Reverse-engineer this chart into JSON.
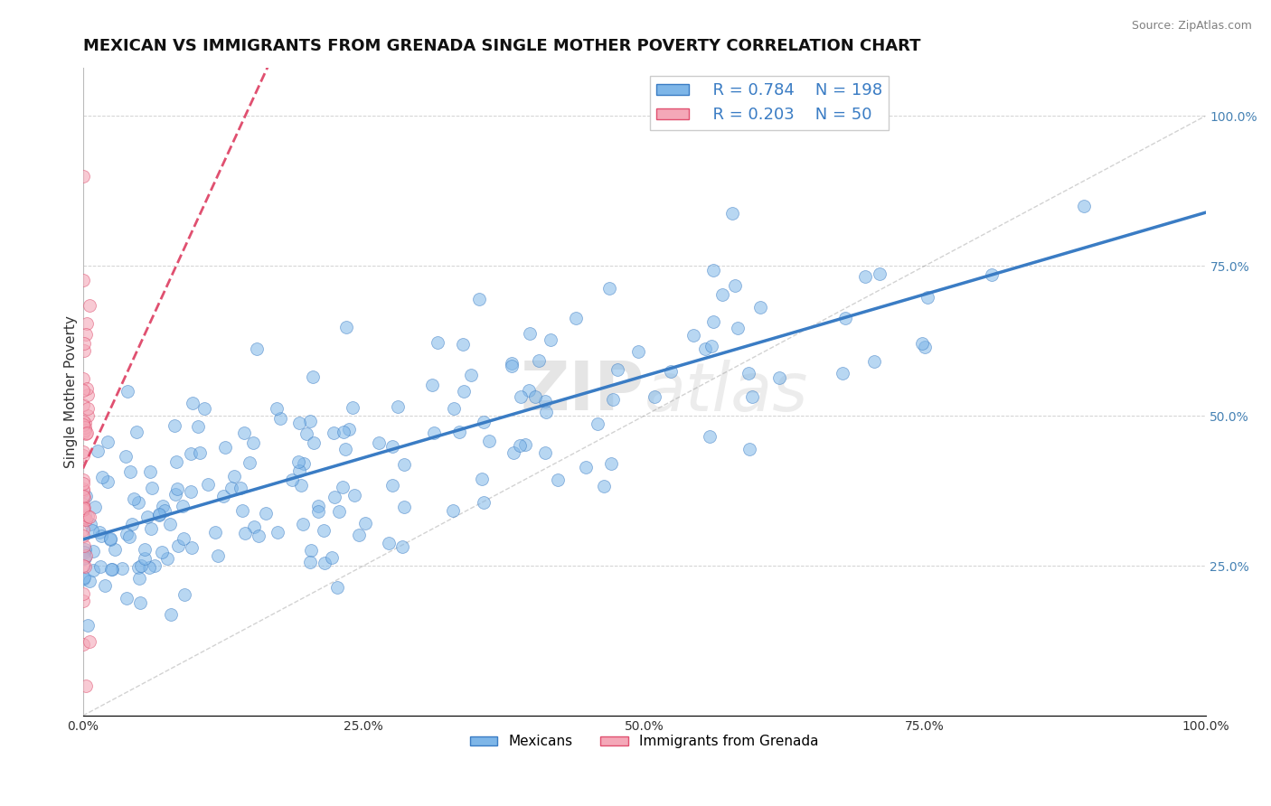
{
  "title": "MEXICAN VS IMMIGRANTS FROM GRENADA SINGLE MOTHER POVERTY CORRELATION CHART",
  "source": "Source: ZipAtlas.com",
  "xlabel": "",
  "ylabel": "Single Mother Poverty",
  "r_mexican": 0.784,
  "n_mexican": 198,
  "r_grenada": 0.203,
  "n_grenada": 50,
  "color_mexican": "#7EB6E8",
  "color_grenada": "#F4A8B8",
  "color_trendline_mexican": "#3A7CC4",
  "color_trendline_grenada": "#E05070",
  "background_color": "#FFFFFF",
  "watermark_zip": "ZIP",
  "watermark_atlas": "atlas",
  "xlim": [
    0,
    1
  ],
  "ylim": [
    0,
    1
  ],
  "x_ticks": [
    0.0,
    0.25,
    0.5,
    0.75,
    1.0
  ],
  "x_tick_labels": [
    "0.0%",
    "25.0%",
    "50.0%",
    "75.0%",
    "100.0%"
  ],
  "y_ticks": [
    0.25,
    0.5,
    0.75,
    1.0
  ],
  "y_tick_labels": [
    "25.0%",
    "50.0%",
    "75.0%",
    "100.0%"
  ],
  "title_fontsize": 13,
  "axis_label_fontsize": 11,
  "tick_fontsize": 10,
  "legend_fontsize": 13
}
